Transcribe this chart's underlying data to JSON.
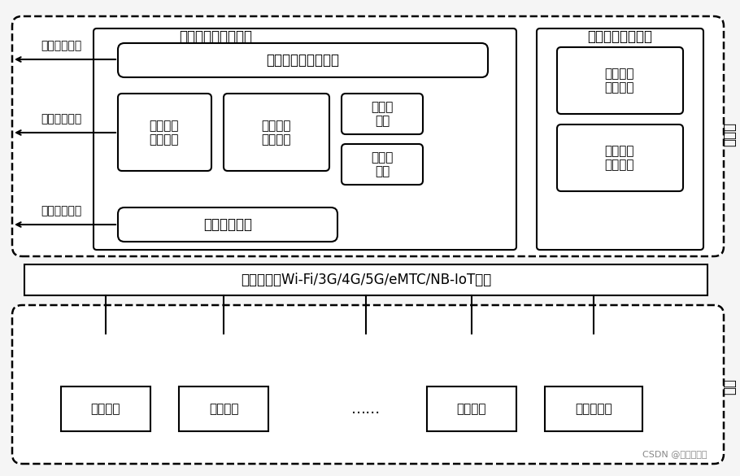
{
  "bg_color": "#f0f0f0",
  "fig_bg": "#f5f5f5",
  "title": "",
  "font_family": "SimHei",
  "labels": {
    "iot_platform": "物联网平台更新模块",
    "third_party": "第三方差分服务器",
    "remote_portal": "远程更新自服务门户",
    "task_plan": "任务计划\n更新策略",
    "update_state": "更新状态\n管理控制",
    "upgrade_pkg": "升级包\n管理",
    "pkg_download": "包下载\n服务",
    "comm_interface": "通信接口模块",
    "diff_gen": "差分分组\n生成服务",
    "diff_download": "差分分组\n下载服务",
    "user_query": "用户信息查询",
    "terminal_query": "终端状态查询",
    "network_query": "网络状态查询",
    "service_side": "服务端",
    "wireless": "无线传输（Wi-Fi/3G/4G/5G/eMTC/NB-IoT等）",
    "smart_meter": "智能电表",
    "smart_light": "智能路灯",
    "ellipsis": "……",
    "env_monitor": "环境监测",
    "wearable": "可穿戴设备",
    "terminal_side": "终端",
    "watermark": "CSDN @一见已难忘"
  }
}
